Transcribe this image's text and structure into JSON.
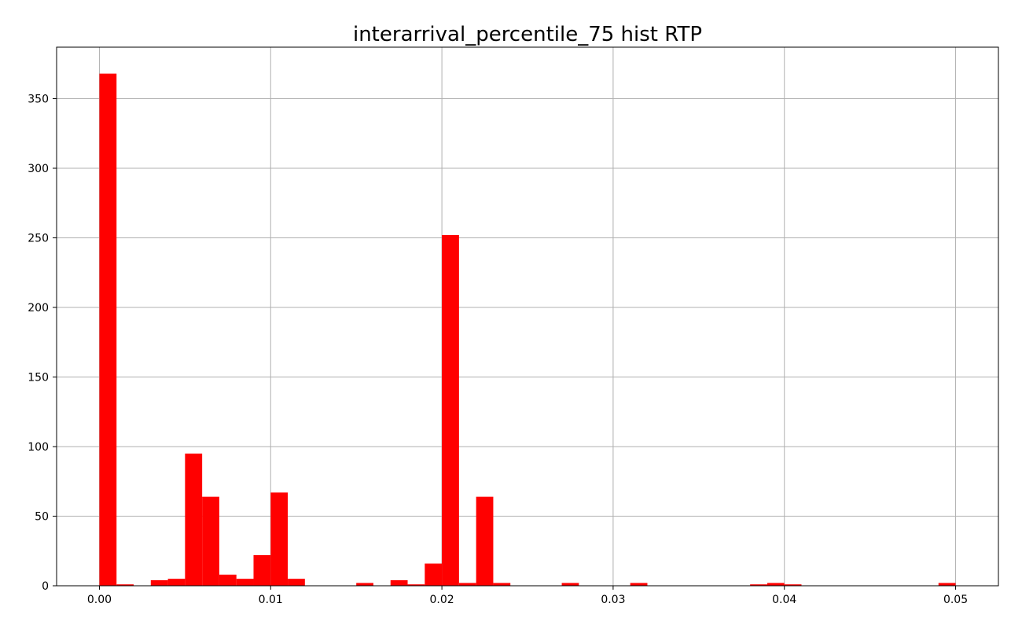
{
  "chart_data": {
    "type": "bar",
    "title": "interarrival_percentile_75 hist RTP",
    "xlabel": "",
    "ylabel": "",
    "xlim": [
      -0.0025,
      0.0525
    ],
    "ylim": [
      0,
      387
    ],
    "x_ticks": [
      0.0,
      0.01,
      0.02,
      0.03,
      0.04,
      0.05
    ],
    "x_tick_labels": [
      "0.00",
      "0.01",
      "0.02",
      "0.03",
      "0.04",
      "0.05"
    ],
    "y_ticks": [
      0,
      50,
      100,
      150,
      200,
      250,
      300,
      350
    ],
    "y_tick_labels": [
      "0",
      "50",
      "100",
      "150",
      "200",
      "250",
      "300",
      "350"
    ],
    "grid": true,
    "bin_width": 0.001,
    "bins": [
      {
        "x0": 0.0,
        "count": 368
      },
      {
        "x0": 0.001,
        "count": 1
      },
      {
        "x0": 0.003,
        "count": 4
      },
      {
        "x0": 0.004,
        "count": 5
      },
      {
        "x0": 0.005,
        "count": 95
      },
      {
        "x0": 0.006,
        "count": 64
      },
      {
        "x0": 0.007,
        "count": 8
      },
      {
        "x0": 0.008,
        "count": 5
      },
      {
        "x0": 0.009,
        "count": 22
      },
      {
        "x0": 0.01,
        "count": 67
      },
      {
        "x0": 0.011,
        "count": 5
      },
      {
        "x0": 0.015,
        "count": 2
      },
      {
        "x0": 0.017,
        "count": 4
      },
      {
        "x0": 0.018,
        "count": 1
      },
      {
        "x0": 0.019,
        "count": 16
      },
      {
        "x0": 0.02,
        "count": 252
      },
      {
        "x0": 0.021,
        "count": 2
      },
      {
        "x0": 0.022,
        "count": 64
      },
      {
        "x0": 0.023,
        "count": 2
      },
      {
        "x0": 0.027,
        "count": 2
      },
      {
        "x0": 0.031,
        "count": 2
      },
      {
        "x0": 0.038,
        "count": 1
      },
      {
        "x0": 0.039,
        "count": 2
      },
      {
        "x0": 0.04,
        "count": 1
      },
      {
        "x0": 0.049,
        "count": 2
      }
    ],
    "colors": {
      "bar": "#ff0000",
      "grid": "#b0b0b0",
      "axis": "#000000"
    }
  }
}
